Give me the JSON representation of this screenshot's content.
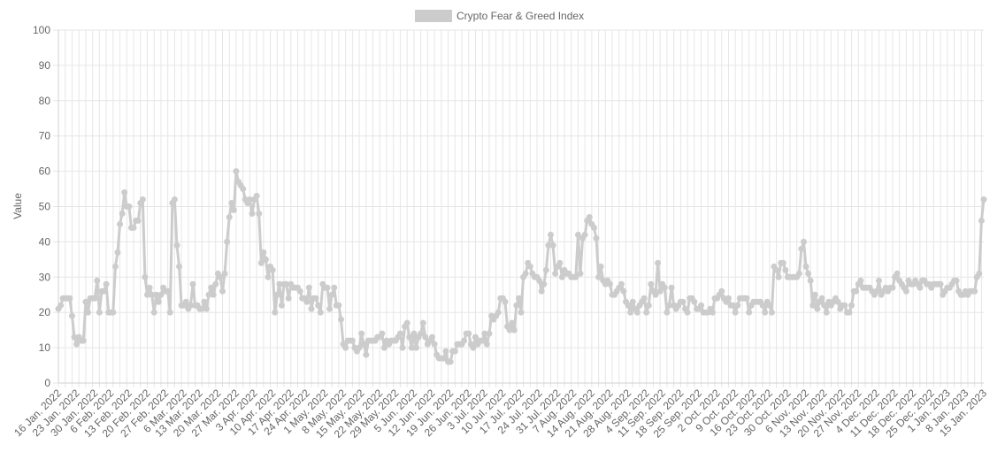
{
  "chart_data": {
    "type": "line",
    "title": "",
    "xlabel": "",
    "ylabel": "Value",
    "ylim": [
      0,
      100
    ],
    "yticks": [
      0,
      10,
      20,
      30,
      40,
      50,
      60,
      70,
      80,
      90,
      100
    ],
    "legend_position": "top-center",
    "grid": true,
    "colors": {
      "series": "#cccccc",
      "grid": "#e6e6e6",
      "text": "#666666"
    },
    "x_tick_labels": [
      "16 Jan. 2022",
      "23 Jan. 2022",
      "30 Jan. 2022",
      "6 Feb. 2022",
      "13 Feb. 2022",
      "20 Feb. 2022",
      "27 Feb. 2022",
      "6 Mar. 2022",
      "13 Mar. 2022",
      "20 Mar. 2022",
      "27 Mar. 2022",
      "3 Apr. 2022",
      "10 Apr. 2022",
      "17 Apr. 2022",
      "24 Apr. 2022",
      "1 May. 2022",
      "8 May. 2022",
      "15 May. 2022",
      "22 May. 2022",
      "29 May. 2022",
      "5 Jun. 2022",
      "12 Jun. 2022",
      "19 Jun. 2022",
      "26 Jun. 2022",
      "3 Jul. 2022",
      "10 Jul. 2022",
      "17 Jul. 2022",
      "24 Jul. 2022",
      "31 Jul. 2022",
      "7 Aug. 2022",
      "14 Aug. 2022",
      "21 Aug. 2022",
      "28 Aug. 2022",
      "4 Sep. 2022",
      "11 Sep. 2022",
      "18 Sep. 2022",
      "25 Sep. 2022",
      "2 Oct. 2022",
      "9 Oct. 2022",
      "16 Oct. 2022",
      "23 Oct. 2022",
      "30 Oct. 2022",
      "6 Nov. 2022",
      "13 Nov. 2022",
      "20 Nov. 2022",
      "27 Nov. 2022",
      "4 Dec. 2022",
      "11 Dec. 2022",
      "18 Dec. 2022",
      "25 Dec. 2022",
      "1 Jan. 2023",
      "8 Jan. 2023",
      "15 Jan. 2023"
    ],
    "series": [
      {
        "name": "Crypto Fear & Greed Index",
        "values": [
          21,
          22,
          24,
          24,
          24,
          24,
          19,
          13,
          11,
          13,
          12,
          12,
          23,
          20,
          24,
          24,
          24,
          29,
          20,
          26,
          26,
          28,
          20,
          20,
          20,
          33,
          37,
          45,
          48,
          54,
          50,
          50,
          44,
          44,
          46,
          46,
          51,
          52,
          30,
          25,
          27,
          25,
          20,
          25,
          23,
          25,
          27,
          26,
          26,
          20,
          51,
          52,
          39,
          33,
          22,
          22,
          23,
          21,
          22,
          28,
          22,
          22,
          21,
          21,
          23,
          21,
          25,
          27,
          25,
          28,
          31,
          30,
          26,
          31,
          40,
          47,
          51,
          49,
          60,
          57,
          56,
          55,
          52,
          51,
          52,
          48,
          52,
          53,
          48,
          34,
          37,
          35,
          30,
          33,
          32,
          20,
          25,
          28,
          22,
          28,
          28,
          24,
          28,
          27,
          27,
          27,
          26,
          24,
          24,
          23,
          27,
          21,
          24,
          24,
          22,
          20,
          28,
          27,
          27,
          21,
          25,
          27,
          22,
          22,
          18,
          11,
          10,
          12,
          12,
          12,
          10,
          9,
          10,
          14,
          11,
          8,
          12,
          12,
          12,
          12,
          13,
          13,
          14,
          10,
          12,
          11,
          12,
          12,
          12,
          13,
          14,
          10,
          16,
          17,
          13,
          10,
          14,
          10,
          13,
          14,
          17,
          13,
          11,
          12,
          13,
          11,
          8,
          7,
          7,
          7,
          9,
          6,
          6,
          9,
          9,
          11,
          11,
          11,
          12,
          14,
          14,
          11,
          10,
          13,
          11,
          12,
          12,
          14,
          11,
          14,
          19,
          18,
          19,
          20,
          24,
          24,
          23,
          16,
          15,
          17,
          15,
          22,
          24,
          20,
          30,
          31,
          34,
          33,
          31,
          30,
          30,
          29,
          26,
          28,
          32,
          39,
          42,
          39,
          31,
          33,
          34,
          30,
          32,
          31,
          31,
          30,
          30,
          30,
          42,
          31,
          41,
          42,
          46,
          47,
          45,
          44,
          41,
          30,
          33,
          29,
          28,
          29,
          28,
          25,
          25,
          26,
          27,
          28,
          26,
          23,
          22,
          20,
          23,
          21,
          20,
          22,
          23,
          24,
          20,
          22,
          28,
          26,
          25,
          34,
          26,
          28,
          27,
          20,
          22,
          27,
          22,
          21,
          22,
          23,
          23,
          21,
          20,
          24,
          24,
          23,
          21,
          21,
          22,
          20,
          20,
          20,
          21,
          20,
          24,
          24,
          25,
          26,
          24,
          23,
          24,
          22,
          22,
          20,
          22,
          24,
          24,
          24,
          24,
          20,
          22,
          23,
          23,
          23,
          23,
          22,
          20,
          23,
          22,
          20,
          33,
          32,
          30,
          34,
          34,
          32,
          30,
          30,
          30,
          30,
          30,
          31,
          38,
          40,
          33,
          31,
          29,
          22,
          25,
          21,
          23,
          24,
          22,
          20,
          23,
          22,
          23,
          24,
          23,
          21,
          22,
          22,
          20,
          20,
          22,
          26,
          26,
          28,
          29,
          27,
          27,
          27,
          27,
          26,
          25,
          26,
          29,
          25,
          26,
          27,
          26,
          27,
          27,
          30,
          31,
          29,
          28,
          27,
          26,
          29,
          28,
          28,
          29,
          28,
          27,
          29,
          29,
          28,
          28,
          27,
          28,
          28,
          28,
          28,
          25,
          26,
          27,
          27,
          28,
          29,
          29,
          26,
          25,
          25,
          26,
          25,
          26,
          26,
          26,
          30,
          31,
          46,
          52
        ]
      }
    ]
  }
}
